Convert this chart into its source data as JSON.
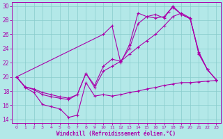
{
  "xlabel": "Windchill (Refroidissement éolien,°C)",
  "bg_color": "#b3e8e8",
  "grid_color": "#88cccc",
  "line_color": "#aa00aa",
  "xlim": [
    -0.5,
    23.5
  ],
  "ylim": [
    13.5,
    30.5
  ],
  "yticks": [
    14,
    16,
    18,
    20,
    22,
    24,
    26,
    28,
    30
  ],
  "xticks": [
    0,
    1,
    2,
    3,
    4,
    5,
    6,
    7,
    8,
    9,
    10,
    11,
    12,
    13,
    14,
    15,
    16,
    17,
    18,
    19,
    20,
    21,
    22,
    23
  ],
  "curves": [
    {
      "x": [
        0,
        1,
        2,
        3,
        4,
        5,
        6,
        7,
        8,
        9,
        10,
        11,
        12,
        13,
        14,
        15,
        16,
        17,
        18,
        19,
        20,
        21,
        22,
        23
      ],
      "y": [
        20.0,
        18.5,
        17.8,
        16.1,
        15.8,
        15.5,
        14.3,
        14.6,
        19.2,
        17.3,
        17.5,
        17.3,
        17.5,
        17.8,
        18.0,
        18.3,
        18.5,
        18.8,
        19.0,
        19.2,
        19.2,
        19.3,
        19.4,
        19.5
      ]
    },
    {
      "x": [
        0,
        1,
        2,
        3,
        4,
        5,
        6,
        7,
        8,
        9,
        10,
        11,
        12,
        13,
        14,
        15,
        16,
        17,
        18,
        19,
        20,
        21,
        22,
        23
      ],
      "y": [
        20.0,
        18.6,
        18.2,
        17.5,
        17.2,
        17.0,
        16.8,
        17.5,
        20.5,
        18.5,
        20.8,
        21.5,
        22.2,
        23.2,
        24.2,
        25.1,
        26.0,
        27.2,
        28.5,
        29.0,
        28.3,
        23.2,
        21.0,
        19.6
      ]
    },
    {
      "x": [
        0,
        1,
        2,
        3,
        4,
        5,
        6,
        7,
        8,
        9,
        10,
        11,
        12,
        13,
        14,
        15,
        16,
        17,
        17.5,
        18,
        19,
        20,
        21,
        22,
        23
      ],
      "y": [
        20.0,
        18.6,
        18.3,
        17.8,
        17.5,
        17.2,
        17.0,
        17.5,
        20.5,
        18.8,
        21.5,
        22.5,
        22.2,
        24.0,
        27.5,
        28.5,
        28.3,
        28.5,
        29.2,
        29.8,
        28.8,
        28.2,
        23.3,
        21.0,
        19.6
      ]
    },
    {
      "x": [
        0,
        10,
        11,
        12,
        13,
        14,
        15,
        16,
        17,
        18,
        19,
        20,
        21,
        22,
        23
      ],
      "y": [
        20.0,
        26.0,
        27.2,
        22.0,
        24.5,
        29.0,
        28.5,
        28.8,
        28.3,
        30.0,
        28.8,
        28.2,
        23.5,
        21.0,
        19.6
      ]
    }
  ]
}
